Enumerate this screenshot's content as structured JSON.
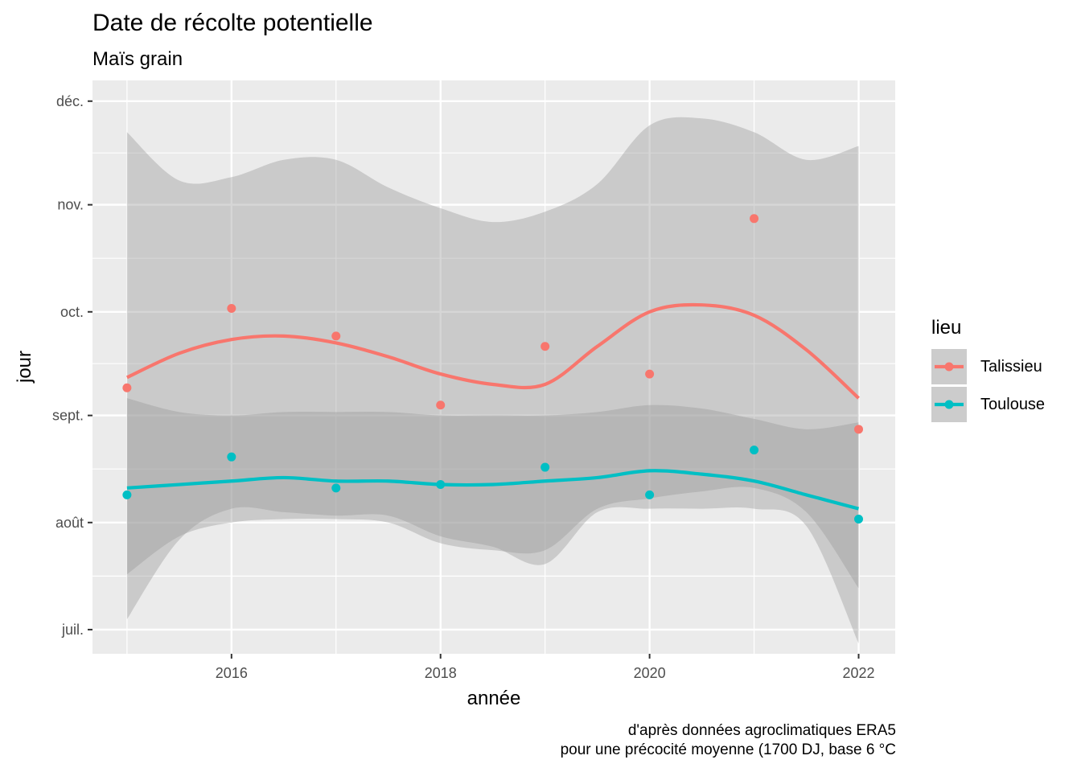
{
  "chart_data": {
    "type": "scatter",
    "title": "Date de récolte potentielle",
    "subtitle": "Maïs grain",
    "xlabel": "année",
    "ylabel": "jour",
    "caption": [
      "d'après données agroclimatiques ERA5",
      "pour une précocité moyenne (1700 DJ, base 6 °C"
    ],
    "xlim": [
      2014.67,
      2022.35
    ],
    "ylim": [
      "2000-06-24",
      "2000-12-07"
    ],
    "x_ticks": [
      2016,
      2018,
      2020,
      2022
    ],
    "y_ticks": [
      {
        "label": "juil.",
        "date": "2000-07-01"
      },
      {
        "label": "août",
        "date": "2000-08-01"
      },
      {
        "label": "sept.",
        "date": "2000-09-01"
      },
      {
        "label": "oct.",
        "date": "2000-10-01"
      },
      {
        "label": "nov.",
        "date": "2000-11-01"
      },
      {
        "label": "déc.",
        "date": "2000-12-01"
      }
    ],
    "legend": {
      "title": "lieu",
      "position": "right"
    },
    "grid": true,
    "series": [
      {
        "name": "Talissieu",
        "color": "#F8766D",
        "points": [
          {
            "x": 2015,
            "y": "2000-09-09"
          },
          {
            "x": 2016,
            "y": "2000-10-02"
          },
          {
            "x": 2017,
            "y": "2000-09-24"
          },
          {
            "x": 2018,
            "y": "2000-09-04"
          },
          {
            "x": 2019,
            "y": "2000-09-21"
          },
          {
            "x": 2020,
            "y": "2000-09-13"
          },
          {
            "x": 2021,
            "y": "2000-10-28"
          },
          {
            "x": 2022,
            "y": "2000-08-28"
          }
        ],
        "smooth": [
          {
            "x": 2015,
            "y": "2000-09-12"
          },
          {
            "x": 2015.5,
            "y": "2000-09-19"
          },
          {
            "x": 2016,
            "y": "2000-09-23"
          },
          {
            "x": 2016.5,
            "y": "2000-09-24"
          },
          {
            "x": 2017,
            "y": "2000-09-22"
          },
          {
            "x": 2017.5,
            "y": "2000-09-18"
          },
          {
            "x": 2018,
            "y": "2000-09-13"
          },
          {
            "x": 2018.5,
            "y": "2000-09-10"
          },
          {
            "x": 2019,
            "y": "2000-09-10"
          },
          {
            "x": 2019.5,
            "y": "2000-09-21"
          },
          {
            "x": 2020,
            "y": "2000-10-01"
          },
          {
            "x": 2020.5,
            "y": "2000-10-03"
          },
          {
            "x": 2021,
            "y": "2000-09-30"
          },
          {
            "x": 2021.5,
            "y": "2000-09-20"
          },
          {
            "x": 2022,
            "y": "2000-09-06"
          }
        ],
        "band_upper": [
          {
            "x": 2015,
            "y": "2000-11-22"
          },
          {
            "x": 2015.5,
            "y": "2000-11-08"
          },
          {
            "x": 2016,
            "y": "2000-11-09"
          },
          {
            "x": 2016.5,
            "y": "2000-11-14"
          },
          {
            "x": 2017,
            "y": "2000-11-14"
          },
          {
            "x": 2017.5,
            "y": "2000-11-06"
          },
          {
            "x": 2018,
            "y": "2000-10-31"
          },
          {
            "x": 2018.5,
            "y": "2000-10-27"
          },
          {
            "x": 2019,
            "y": "2000-10-30"
          },
          {
            "x": 2019.5,
            "y": "2000-11-07"
          },
          {
            "x": 2020,
            "y": "2000-11-24"
          },
          {
            "x": 2020.5,
            "y": "2000-11-26"
          },
          {
            "x": 2021,
            "y": "2000-11-22"
          },
          {
            "x": 2021.5,
            "y": "2000-11-14"
          },
          {
            "x": 2022,
            "y": "2000-11-18"
          }
        ],
        "band_lower": [
          {
            "x": 2015,
            "y": "2000-07-04"
          },
          {
            "x": 2015.5,
            "y": "2000-07-27"
          },
          {
            "x": 2016,
            "y": "2000-08-05"
          },
          {
            "x": 2016.5,
            "y": "2000-08-04"
          },
          {
            "x": 2017,
            "y": "2000-08-03"
          },
          {
            "x": 2017.5,
            "y": "2000-08-03"
          },
          {
            "x": 2018,
            "y": "2000-07-28"
          },
          {
            "x": 2018.5,
            "y": "2000-07-25"
          },
          {
            "x": 2019,
            "y": "2000-07-20"
          },
          {
            "x": 2019.5,
            "y": "2000-08-04"
          },
          {
            "x": 2020,
            "y": "2000-08-05"
          },
          {
            "x": 2020.5,
            "y": "2000-08-05"
          },
          {
            "x": 2021,
            "y": "2000-08-05"
          },
          {
            "x": 2021.5,
            "y": "2000-07-31"
          },
          {
            "x": 2022,
            "y": "2000-06-27"
          }
        ]
      },
      {
        "name": "Toulouse",
        "color": "#00BFC4",
        "points": [
          {
            "x": 2015,
            "y": "2000-08-09"
          },
          {
            "x": 2016,
            "y": "2000-08-20"
          },
          {
            "x": 2017,
            "y": "2000-08-11"
          },
          {
            "x": 2018,
            "y": "2000-08-12"
          },
          {
            "x": 2019,
            "y": "2000-08-17"
          },
          {
            "x": 2020,
            "y": "2000-08-09"
          },
          {
            "x": 2021,
            "y": "2000-08-22"
          },
          {
            "x": 2022,
            "y": "2000-08-02"
          }
        ],
        "smooth": [
          {
            "x": 2015,
            "y": "2000-08-11"
          },
          {
            "x": 2015.5,
            "y": "2000-08-12"
          },
          {
            "x": 2016,
            "y": "2000-08-13"
          },
          {
            "x": 2016.5,
            "y": "2000-08-14"
          },
          {
            "x": 2017,
            "y": "2000-08-13"
          },
          {
            "x": 2017.5,
            "y": "2000-08-13"
          },
          {
            "x": 2018,
            "y": "2000-08-12"
          },
          {
            "x": 2018.5,
            "y": "2000-08-12"
          },
          {
            "x": 2019,
            "y": "2000-08-13"
          },
          {
            "x": 2019.5,
            "y": "2000-08-14"
          },
          {
            "x": 2020,
            "y": "2000-08-16"
          },
          {
            "x": 2020.5,
            "y": "2000-08-15"
          },
          {
            "x": 2021,
            "y": "2000-08-13"
          },
          {
            "x": 2021.5,
            "y": "2000-08-09"
          },
          {
            "x": 2022,
            "y": "2000-08-05"
          }
        ],
        "band_upper": [
          {
            "x": 2015,
            "y": "2000-09-06"
          },
          {
            "x": 2015.5,
            "y": "2000-09-02"
          },
          {
            "x": 2016,
            "y": "2000-09-01"
          },
          {
            "x": 2016.5,
            "y": "2000-09-02"
          },
          {
            "x": 2017,
            "y": "2000-09-02"
          },
          {
            "x": 2017.5,
            "y": "2000-09-02"
          },
          {
            "x": 2018,
            "y": "2000-09-01"
          },
          {
            "x": 2018.5,
            "y": "2000-09-01"
          },
          {
            "x": 2019,
            "y": "2000-09-01"
          },
          {
            "x": 2019.5,
            "y": "2000-09-02"
          },
          {
            "x": 2020,
            "y": "2000-09-04"
          },
          {
            "x": 2020.5,
            "y": "2000-09-03"
          },
          {
            "x": 2021,
            "y": "2000-08-31"
          },
          {
            "x": 2021.5,
            "y": "2000-08-28"
          },
          {
            "x": 2022,
            "y": "2000-08-30"
          }
        ],
        "band_lower": [
          {
            "x": 2015,
            "y": "2000-07-17"
          },
          {
            "x": 2015.5,
            "y": "2000-07-28"
          },
          {
            "x": 2016,
            "y": "2000-08-01"
          },
          {
            "x": 2016.5,
            "y": "2000-08-02"
          },
          {
            "x": 2017,
            "y": "2000-08-02"
          },
          {
            "x": 2017.5,
            "y": "2000-08-01"
          },
          {
            "x": 2018,
            "y": "2000-07-26"
          },
          {
            "x": 2018.5,
            "y": "2000-07-24"
          },
          {
            "x": 2019,
            "y": "2000-07-24"
          },
          {
            "x": 2019.5,
            "y": "2000-08-05"
          },
          {
            "x": 2020,
            "y": "2000-08-08"
          },
          {
            "x": 2020.5,
            "y": "2000-08-10"
          },
          {
            "x": 2021,
            "y": "2000-08-11"
          },
          {
            "x": 2021.5,
            "y": "2000-08-04"
          },
          {
            "x": 2022,
            "y": "2000-07-13"
          }
        ]
      }
    ]
  }
}
